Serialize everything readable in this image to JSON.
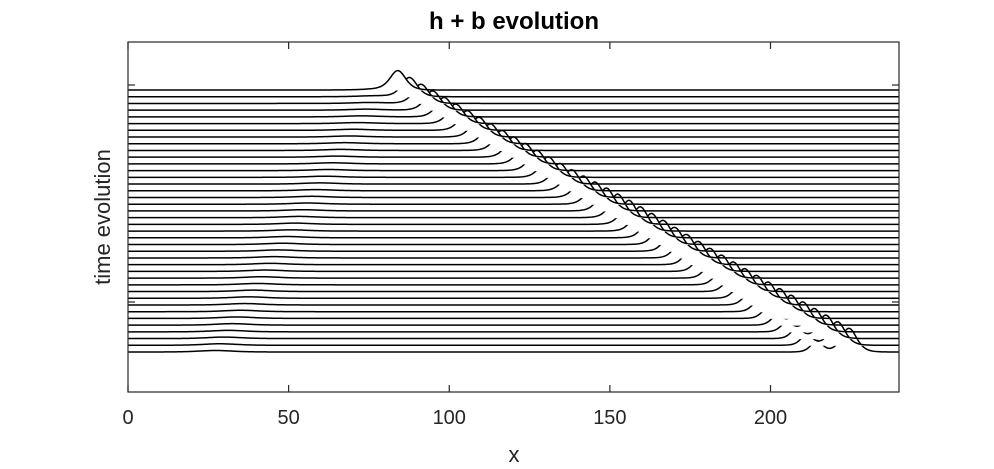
{
  "chart_data": {
    "type": "line",
    "title": "h + b evolution",
    "xlabel": "x",
    "ylabel": "time evolution",
    "xlim": [
      0,
      240
    ],
    "x_ticks": [
      0,
      50,
      100,
      150,
      200
    ],
    "x_tick_labels": [
      "0",
      "50",
      "100",
      "150",
      "200"
    ],
    "y_ticks_shown": false,
    "grid": false,
    "line_color": "#000000",
    "fill_color": "#ffffff",
    "series_count": 40,
    "series_layout": "waterfall, offset stack, top trace drawn in front",
    "first_trace_baseline_x": [
      0,
      240
    ],
    "solitary_wave": {
      "top_peak_x": 84,
      "peak_speed_x_per_trace": 3.6,
      "top_amplitude_rel": 1.0,
      "bottom_amplitude_rel": 1.25,
      "width_x": 3.2
    },
    "trailing_wave": {
      "top_center_x": 78,
      "center_speed_x_per_trace": -1.3,
      "width_x": 7,
      "final_amplitude_rel": 0.08
    },
    "secondary_wave": {
      "start_trace": 15,
      "start_x": 140,
      "speed_x_per_trace": 3.1,
      "final_amplitude_rel": 0.6,
      "width_x": 2.4
    }
  }
}
